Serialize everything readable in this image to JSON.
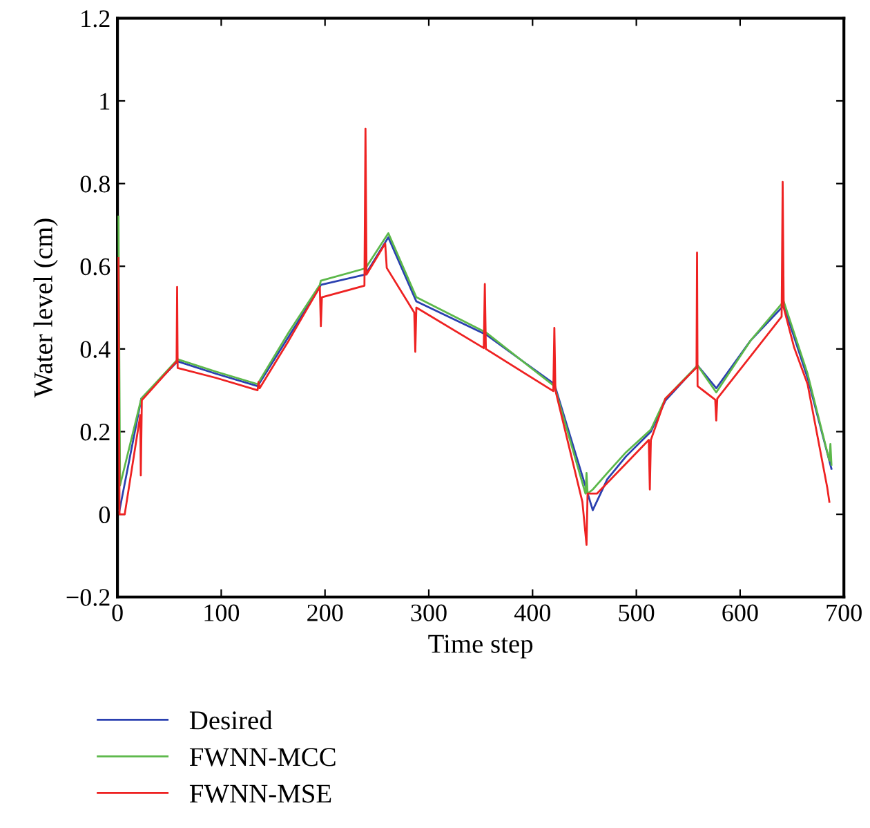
{
  "chart_data": {
    "type": "line",
    "xlabel": "Time step",
    "ylabel": "Water level (cm)",
    "xlim": [
      0,
      700
    ],
    "ylim": [
      -0.2,
      1.2
    ],
    "xticks": [
      0,
      100,
      200,
      300,
      400,
      500,
      600,
      700
    ],
    "yticks": [
      {
        "value": -0.2,
        "label": "−0.2"
      },
      0,
      0.2,
      0.4,
      0.6,
      0.8,
      1,
      1.2
    ],
    "grid": false,
    "legend": "bottom",
    "marker": "none",
    "line_style": "solid",
    "series": [
      {
        "name": "Desired",
        "color": "#2a40b0",
        "x": [
          2,
          23,
          58,
          95,
          135,
          165,
          195,
          196,
          239,
          261,
          288,
          355,
          421,
          458,
          472,
          490,
          514,
          528,
          559,
          577,
          610,
          642,
          665,
          688
        ],
        "values": [
          0.01,
          0.28,
          0.37,
          0.34,
          0.31,
          0.43,
          0.55,
          0.555,
          0.58,
          0.67,
          0.515,
          0.435,
          0.315,
          0.01,
          0.085,
          0.14,
          0.2,
          0.275,
          0.36,
          0.305,
          0.42,
          0.505,
          0.33,
          0.11
        ]
      },
      {
        "name": "FWNN-MCC",
        "color": "#5cb84a",
        "x": [
          1,
          2.5,
          23,
          58,
          95,
          135,
          165,
          195,
          196,
          239,
          261,
          288,
          355,
          421,
          451,
          452,
          453,
          458,
          472,
          490,
          514,
          528,
          559,
          577,
          610,
          642,
          665,
          686,
          687,
          688
        ],
        "values": [
          0.72,
          0.07,
          0.28,
          0.375,
          0.345,
          0.315,
          0.44,
          0.555,
          0.565,
          0.595,
          0.68,
          0.525,
          0.44,
          0.31,
          0.05,
          0.1,
          0.05,
          0.06,
          0.1,
          0.15,
          0.205,
          0.28,
          0.36,
          0.295,
          0.42,
          0.515,
          0.34,
          0.13,
          0.17,
          0.12
        ]
      },
      {
        "name": "FWNN-MSE",
        "color": "#ee2222",
        "x": [
          1,
          2,
          7,
          22,
          22.5,
          23.5,
          57,
          57.5,
          58,
          95,
          135,
          136,
          137,
          165,
          195,
          196,
          197,
          238,
          239,
          240,
          258,
          259.5,
          286,
          287,
          288,
          353,
          354,
          355,
          420,
          421,
          422,
          448,
          452,
          453,
          462,
          472,
          512,
          513,
          514,
          528,
          558,
          558.5,
          559,
          576,
          577,
          578,
          640,
          641,
          642,
          652,
          665,
          684,
          686
        ],
        "values": [
          0.62,
          0,
          0,
          0.24,
          0.094,
          0.276,
          0.37,
          0.55,
          0.354,
          0.33,
          0.3,
          0.32,
          0.305,
          0.42,
          0.55,
          0.455,
          0.525,
          0.553,
          0.933,
          0.58,
          0.655,
          0.596,
          0.488,
          0.393,
          0.5,
          0.402,
          0.557,
          0.4,
          0.298,
          0.451,
          0.3,
          0.03,
          -0.074,
          0.05,
          0.05,
          0.076,
          0.18,
          0.06,
          0.18,
          0.28,
          0.355,
          0.633,
          0.31,
          0.277,
          0.227,
          0.28,
          0.478,
          0.804,
          0.5,
          0.404,
          0.315,
          0.064,
          0.03
        ]
      }
    ]
  }
}
